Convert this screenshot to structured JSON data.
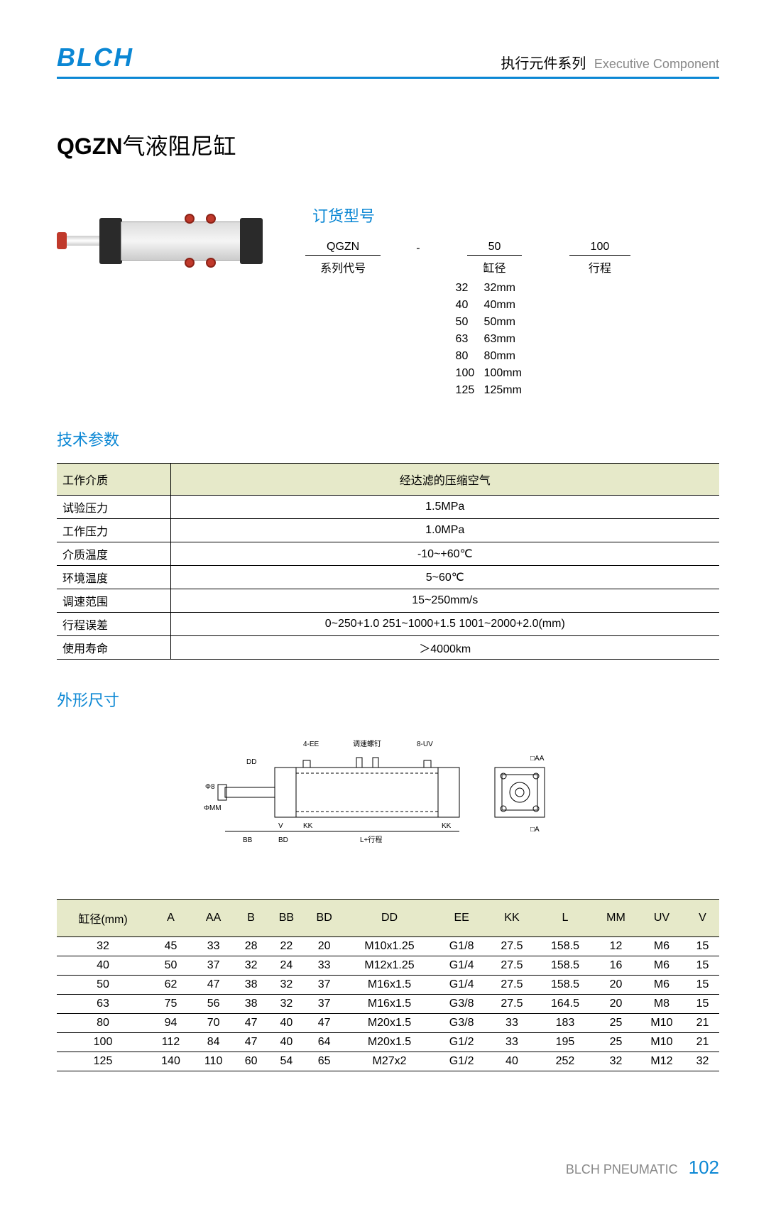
{
  "colors": {
    "accent": "#0b87d4",
    "table_header_bg": "#e6e9c9",
    "text": "#000000",
    "muted": "#888888",
    "rule": "#000000"
  },
  "header": {
    "logo_text": "BLCH",
    "category_cn": "执行元件系列",
    "category_en": "Executive Component"
  },
  "title": {
    "model": "QGZN",
    "name": "气液阻尼缸"
  },
  "order": {
    "section_title": "订货型号",
    "series_value": "QGZN",
    "series_label": "系列代号",
    "dash": "-",
    "bore_value": "50",
    "bore_label": "缸径",
    "stroke_value": "100",
    "stroke_label": "行程",
    "bore_options": [
      {
        "code": "32",
        "mm": "32mm"
      },
      {
        "code": "40",
        "mm": "40mm"
      },
      {
        "code": "50",
        "mm": "50mm"
      },
      {
        "code": "63",
        "mm": "63mm"
      },
      {
        "code": "80",
        "mm": "80mm"
      },
      {
        "code": "100",
        "mm": "100mm"
      },
      {
        "code": "125",
        "mm": "125mm"
      }
    ]
  },
  "spec": {
    "section_title": "技术参数",
    "header_param": "工作介质",
    "header_value": "经达滤的压缩空气",
    "rows": [
      {
        "param": "试验压力",
        "value": "1.5MPa"
      },
      {
        "param": "工作压力",
        "value": "1.0MPa"
      },
      {
        "param": "介质温度",
        "value": "-10~+60℃"
      },
      {
        "param": "环境温度",
        "value": "5~60℃"
      },
      {
        "param": "调速范围",
        "value": "15~250mm/s"
      },
      {
        "param": "行程误差",
        "value": "0~250+1.0  251~1000+1.5  1001~2000+2.0(mm)"
      },
      {
        "param": "使用寿命",
        "value": "＞4000km"
      }
    ]
  },
  "outline": {
    "section_title": "外形尺寸",
    "diagram_labels": {
      "ee": "4-EE",
      "adjust": "调速螺钉",
      "uv": "8-UV",
      "aa": "□AA",
      "a": "□A",
      "dd": "DD",
      "mm": "ΦMM",
      "phi8": "Φ8",
      "bb": "BB",
      "bd": "BD",
      "v": "V",
      "kk": "KK",
      "kk2": "KK",
      "l": "L+行程"
    }
  },
  "dims": {
    "columns": [
      "缸径(mm)",
      "A",
      "AA",
      "B",
      "BB",
      "BD",
      "DD",
      "EE",
      "KK",
      "L",
      "MM",
      "UV",
      "V"
    ],
    "rows": [
      [
        "32",
        "45",
        "33",
        "28",
        "22",
        "20",
        "M10x1.25",
        "G1/8",
        "27.5",
        "158.5",
        "12",
        "M6",
        "15"
      ],
      [
        "40",
        "50",
        "37",
        "32",
        "24",
        "33",
        "M12x1.25",
        "G1/4",
        "27.5",
        "158.5",
        "16",
        "M6",
        "15"
      ],
      [
        "50",
        "62",
        "47",
        "38",
        "32",
        "37",
        "M16x1.5",
        "G1/4",
        "27.5",
        "158.5",
        "20",
        "M6",
        "15"
      ],
      [
        "63",
        "75",
        "56",
        "38",
        "32",
        "37",
        "M16x1.5",
        "G3/8",
        "27.5",
        "164.5",
        "20",
        "M8",
        "15"
      ],
      [
        "80",
        "94",
        "70",
        "47",
        "40",
        "47",
        "M20x1.5",
        "G3/8",
        "33",
        "183",
        "25",
        "M10",
        "21"
      ],
      [
        "100",
        "112",
        "84",
        "47",
        "40",
        "64",
        "M20x1.5",
        "G1/2",
        "33",
        "195",
        "25",
        "M10",
        "21"
      ],
      [
        "125",
        "140",
        "110",
        "60",
        "54",
        "65",
        "M27x2",
        "G1/2",
        "40",
        "252",
        "32",
        "M12",
        "32"
      ]
    ]
  },
  "footer": {
    "brand": "BLCH PNEUMATIC",
    "page": "102"
  }
}
